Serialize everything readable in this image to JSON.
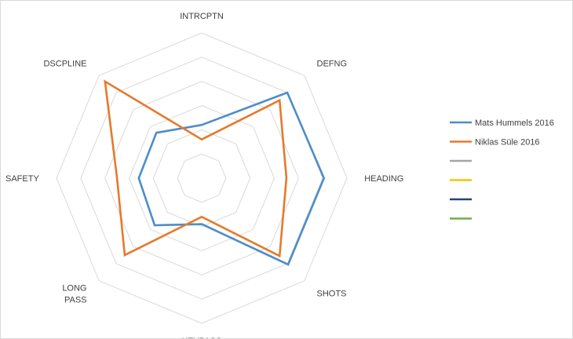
{
  "chart_data": {
    "type": "radar",
    "axes": [
      "INTRCPTN",
      "DEFNG",
      "HEADING",
      "SHOTS",
      "KEYPASS",
      "LONG PASS",
      "SAFETY",
      "DSCPLINE"
    ],
    "series": [
      {
        "name": "Mats Hummels 2016",
        "color": "#4e8cc8",
        "values": [
          0.44,
          1.0,
          1.01,
          1.01,
          0.38,
          0.55,
          0.52,
          0.53
        ]
      },
      {
        "name": "Niklas Süle 2016",
        "color": "#e57a2b",
        "values": [
          0.32,
          0.91,
          0.7,
          0.91,
          0.32,
          0.9,
          0.7,
          1.13
        ]
      }
    ],
    "empty_legend_entries": [
      {
        "color": "#a5a5a5"
      },
      {
        "color": "#ffc000"
      },
      {
        "color": "#264478"
      },
      {
        "color": "#70ad47"
      }
    ],
    "rings": 6,
    "range": [
      0,
      1.2
    ],
    "grid": true,
    "legend": "right"
  }
}
